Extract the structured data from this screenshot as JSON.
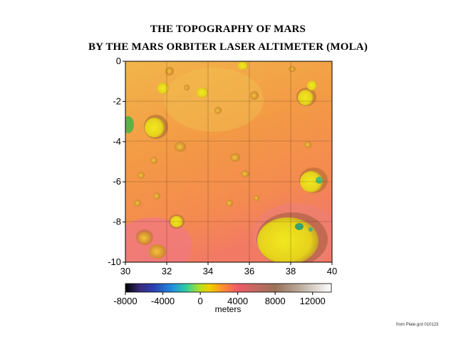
{
  "header": {
    "title_line1": "THE TOPOGRAPHY OF MARS",
    "title_line2": "BY THE MARS ORBITER LASER ALTIMETER (MOLA)"
  },
  "map": {
    "x_ticks": [
      "30",
      "32",
      "34",
      "36",
      "38",
      "40"
    ],
    "y_ticks": [
      "0",
      "-2",
      "-4",
      "-6",
      "-8",
      "-10"
    ],
    "x_range": [
      30,
      40
    ],
    "y_range": [
      -10,
      0
    ]
  },
  "colorbar": {
    "ticks": [
      "-8000",
      "-4000",
      "0",
      "4000",
      "8000",
      "12000"
    ],
    "range": [
      -8000,
      14000
    ],
    "units": "meters",
    "stops": [
      {
        "v": -8000,
        "c": "#000000"
      },
      {
        "v": -6500,
        "c": "#3a2a78"
      },
      {
        "v": -5000,
        "c": "#2a3fb0"
      },
      {
        "v": -3000,
        "c": "#1f8fe0"
      },
      {
        "v": -1500,
        "c": "#2fcfa0"
      },
      {
        "v": 0,
        "c": "#b8e020"
      },
      {
        "v": 1000,
        "c": "#f0d000"
      },
      {
        "v": 2500,
        "c": "#ff8a30"
      },
      {
        "v": 4000,
        "c": "#f05a6a"
      },
      {
        "v": 6000,
        "c": "#c06a60"
      },
      {
        "v": 8000,
        "c": "#9a7258"
      },
      {
        "v": 10500,
        "c": "#b9a898"
      },
      {
        "v": 14000,
        "c": "#ffffff"
      }
    ]
  },
  "credit": "from Plate.grd 010123"
}
